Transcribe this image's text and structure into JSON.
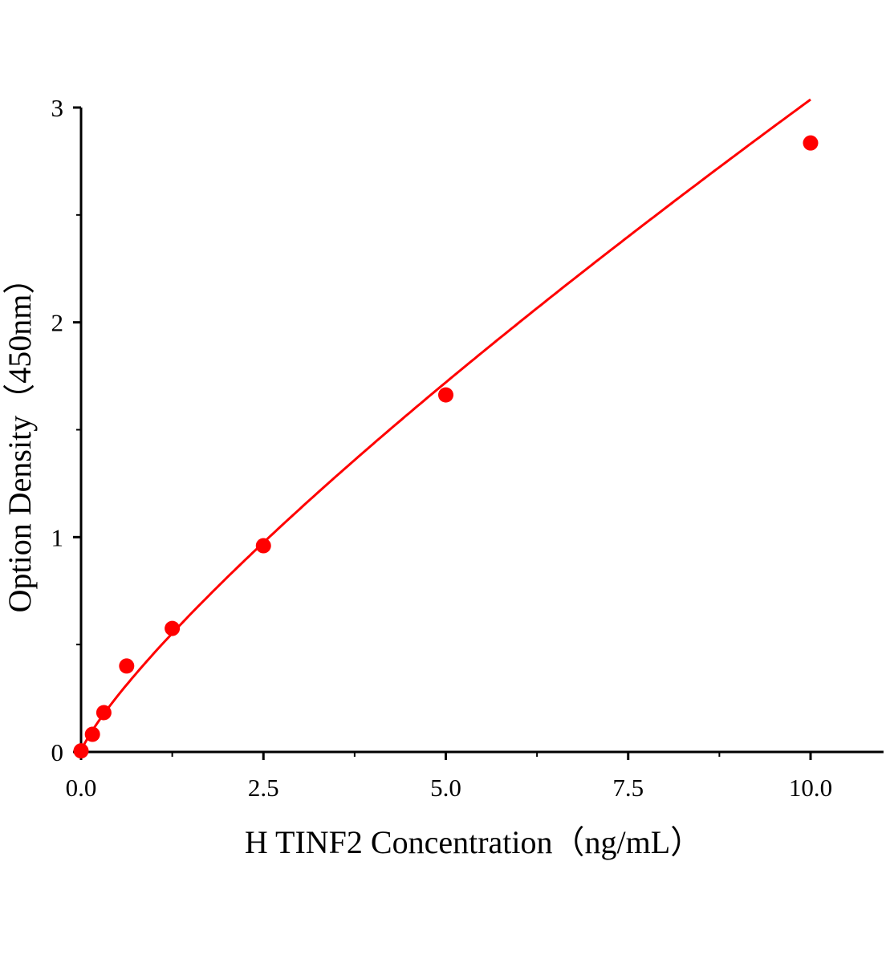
{
  "chart_data": {
    "type": "scatter",
    "title": "",
    "xlabel": "H TINF2 Concentration（ng/mL）",
    "ylabel": "Option Density（450nm）",
    "xlim": [
      0,
      11
    ],
    "ylim": [
      0,
      3
    ],
    "x_ticks": [
      0,
      2.5,
      5,
      7.5,
      10
    ],
    "x_tick_labels": [
      "0.0",
      "2.5",
      "5.0",
      "7.5",
      "10.0"
    ],
    "y_ticks": [
      0,
      1,
      2,
      3
    ],
    "y_tick_labels": [
      "0",
      "1",
      "2",
      "3"
    ],
    "grid": false,
    "color": "#ff0000",
    "series": [
      {
        "x": [
          0,
          0.156,
          0.3125,
          0.625,
          1.25,
          2.5,
          5,
          10
        ],
        "y": [
          0.005,
          0.082,
          0.183,
          0.4,
          0.575,
          0.96,
          1.662,
          2.835
        ],
        "fit_line": true
      }
    ]
  }
}
